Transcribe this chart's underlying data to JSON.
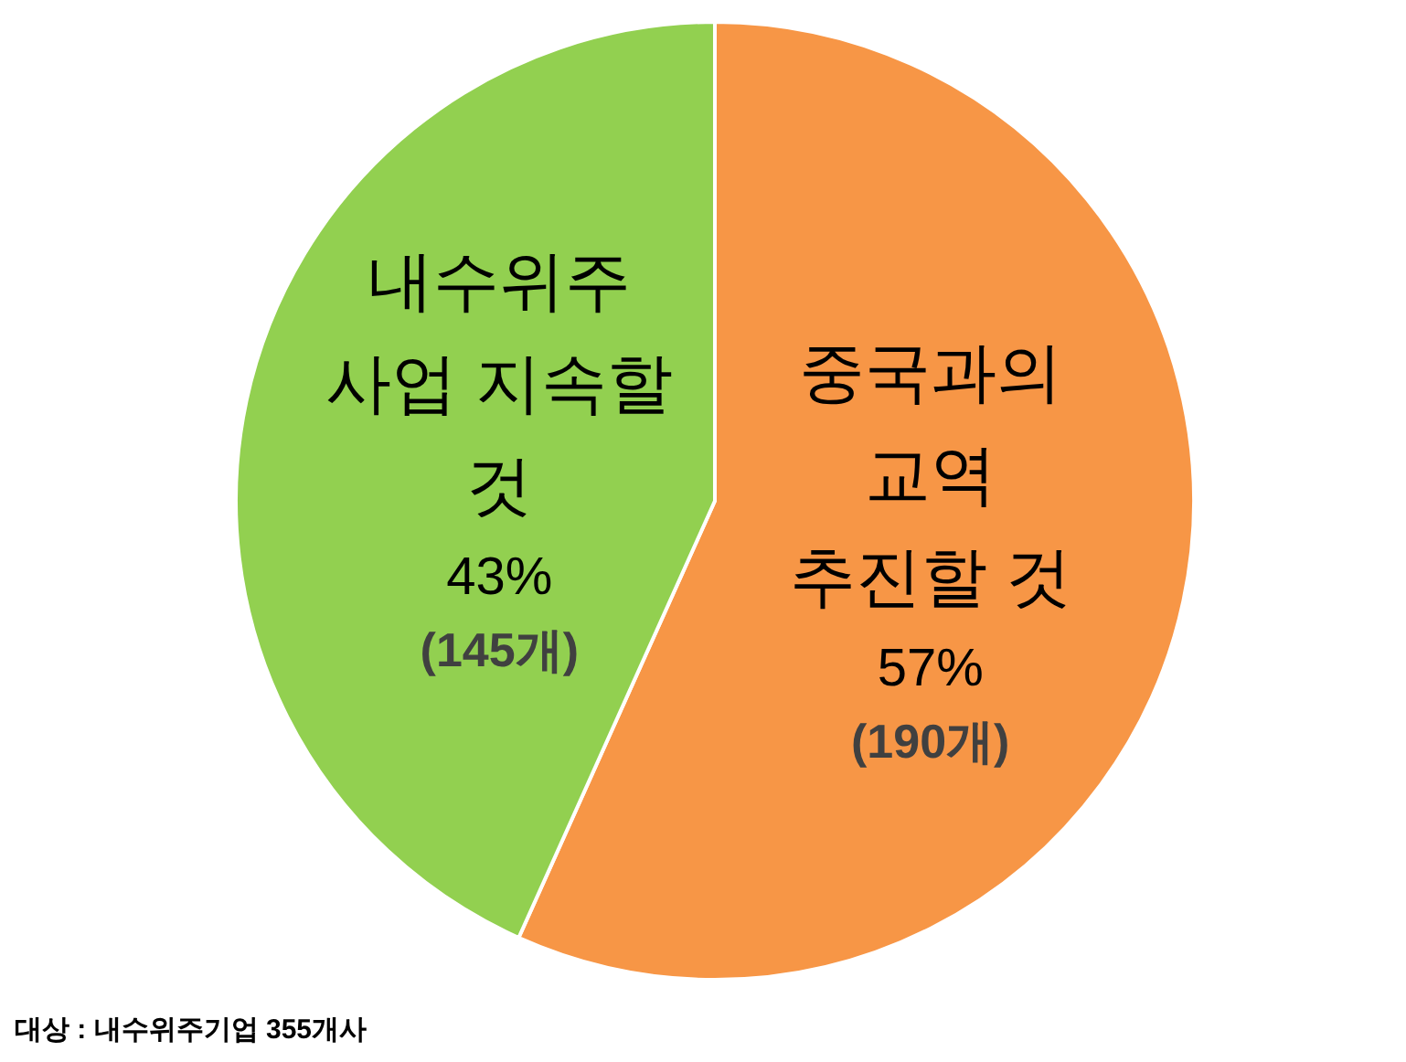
{
  "chart_data": {
    "type": "pie",
    "categories": [
      "중국과의\n교역\n추진할 것",
      "내수위주\n사업 지속할\n것"
    ],
    "values": [
      190,
      145
    ],
    "value_labels": [
      "57%\n(190개)",
      "43%\n(145개)"
    ],
    "colors": [
      "#f79646",
      "#92d050"
    ],
    "annotations": [
      "대상 : 내수위주기업 355개사"
    ]
  }
}
